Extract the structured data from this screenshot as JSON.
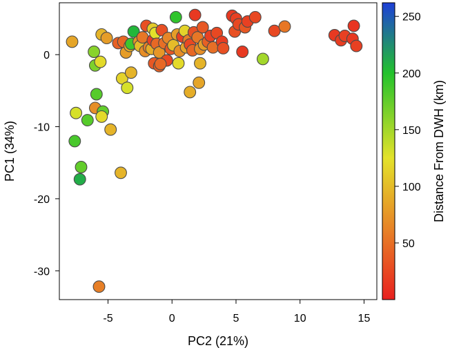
{
  "chart_data": {
    "type": "scatter",
    "xlabel": "PC2 (21%)",
    "ylabel": "PC1 (34%)",
    "xlim": [
      -8.8,
      16
    ],
    "ylim": [
      -34,
      7.2
    ],
    "xticks": [
      -5,
      0,
      5,
      10,
      15
    ],
    "yticks": [
      0,
      -10,
      -20,
      -30
    ],
    "xtick_labels": [
      "-5",
      "0",
      "5",
      "10",
      "15"
    ],
    "ytick_labels": [
      "0",
      "-10",
      "-20",
      "-30"
    ],
    "grid": false,
    "colorbar": {
      "label": "Distance From DWH (km)",
      "range": [
        0,
        262
      ],
      "ticks": [
        50,
        100,
        150,
        200,
        250
      ],
      "tick_labels": [
        "50",
        "100",
        "150",
        "200",
        "250"
      ],
      "stops": [
        {
          "v": 0,
          "color": "#e8211f"
        },
        {
          "v": 60,
          "color": "#e77f27"
        },
        {
          "v": 125,
          "color": "#e3e22a"
        },
        {
          "v": 200,
          "color": "#23c22c"
        },
        {
          "v": 262,
          "color": "#1e3fd8"
        }
      ]
    },
    "points": [
      {
        "x": -7.8,
        "y": 1.8,
        "d": 85
      },
      {
        "x": -5.5,
        "y": 2.8,
        "d": 95
      },
      {
        "x": -5.1,
        "y": 2.3,
        "d": 80
      },
      {
        "x": -6.1,
        "y": 0.4,
        "d": 160
      },
      {
        "x": -6.0,
        "y": -1.5,
        "d": 165
      },
      {
        "x": -5.6,
        "y": -1.0,
        "d": 120
      },
      {
        "x": -4.2,
        "y": 1.6,
        "d": 40
      },
      {
        "x": -3.8,
        "y": 1.8,
        "d": 45
      },
      {
        "x": -3.6,
        "y": 0.3,
        "d": 80
      },
      {
        "x": -3.3,
        "y": 1.2,
        "d": 90
      },
      {
        "x": -3.2,
        "y": 1.5,
        "d": 190
      },
      {
        "x": -3.0,
        "y": 3.2,
        "d": 205
      },
      {
        "x": -2.6,
        "y": 1.8,
        "d": 75
      },
      {
        "x": -2.5,
        "y": 1.2,
        "d": 100
      },
      {
        "x": -2.3,
        "y": 2.4,
        "d": 55
      },
      {
        "x": -2.1,
        "y": 0.5,
        "d": 70
      },
      {
        "x": -2.0,
        "y": 4.0,
        "d": 30
      },
      {
        "x": -1.8,
        "y": 1.0,
        "d": 60
      },
      {
        "x": -1.6,
        "y": 0.8,
        "d": 90
      },
      {
        "x": -1.5,
        "y": 3.6,
        "d": 110
      },
      {
        "x": -1.5,
        "y": 2.0,
        "d": 20
      },
      {
        "x": -1.4,
        "y": -1.2,
        "d": 35
      },
      {
        "x": -1.3,
        "y": 3.0,
        "d": 125
      },
      {
        "x": -1.2,
        "y": 1.5,
        "d": 45
      },
      {
        "x": -1.0,
        "y": 0.3,
        "d": 75
      },
      {
        "x": -1.0,
        "y": -1.6,
        "d": 40
      },
      {
        "x": -0.8,
        "y": 3.4,
        "d": 30
      },
      {
        "x": -0.6,
        "y": 1.6,
        "d": 50
      },
      {
        "x": -0.4,
        "y": -0.8,
        "d": 25
      },
      {
        "x": -0.3,
        "y": 2.3,
        "d": 65
      },
      {
        "x": -0.1,
        "y": 0.8,
        "d": 35
      },
      {
        "x": 0.1,
        "y": 1.3,
        "d": 100
      },
      {
        "x": 0.3,
        "y": 5.2,
        "d": 195
      },
      {
        "x": 0.4,
        "y": 2.8,
        "d": 80
      },
      {
        "x": 0.6,
        "y": 0.5,
        "d": 70
      },
      {
        "x": 0.8,
        "y": 2.5,
        "d": 20
      },
      {
        "x": 1.0,
        "y": 3.3,
        "d": 115
      },
      {
        "x": 1.1,
        "y": 1.0,
        "d": 85
      },
      {
        "x": 1.3,
        "y": 2.0,
        "d": 60
      },
      {
        "x": 1.4,
        "y": 1.4,
        "d": 25
      },
      {
        "x": 1.6,
        "y": 0.6,
        "d": 45
      },
      {
        "x": 1.7,
        "y": 3.1,
        "d": 30
      },
      {
        "x": 1.8,
        "y": 5.5,
        "d": 15
      },
      {
        "x": 2.0,
        "y": 2.4,
        "d": 55
      },
      {
        "x": 2.2,
        "y": 0.8,
        "d": 70
      },
      {
        "x": 2.4,
        "y": 3.8,
        "d": 35
      },
      {
        "x": 2.5,
        "y": 1.4,
        "d": 80
      },
      {
        "x": 2.8,
        "y": 1.8,
        "d": 40
      },
      {
        "x": 3.0,
        "y": 2.6,
        "d": 20
      },
      {
        "x": 3.2,
        "y": 1.0,
        "d": 50
      },
      {
        "x": 3.5,
        "y": 3.0,
        "d": 25
      },
      {
        "x": 3.9,
        "y": 1.8,
        "d": 18
      },
      {
        "x": 4.0,
        "y": 0.9,
        "d": 30
      },
      {
        "x": 4.7,
        "y": 5.4,
        "d": 15
      },
      {
        "x": 4.9,
        "y": 3.2,
        "d": 30
      },
      {
        "x": 5.0,
        "y": 5.0,
        "d": 20
      },
      {
        "x": 5.2,
        "y": 4.2,
        "d": 25
      },
      {
        "x": 5.5,
        "y": 0.4,
        "d": 15
      },
      {
        "x": 5.7,
        "y": 3.8,
        "d": 35
      },
      {
        "x": 5.9,
        "y": 4.6,
        "d": 20
      },
      {
        "x": 6.5,
        "y": 5.2,
        "d": 25
      },
      {
        "x": 7.1,
        "y": -0.6,
        "d": 150
      },
      {
        "x": 8.0,
        "y": 3.3,
        "d": 25
      },
      {
        "x": 8.8,
        "y": 3.9,
        "d": 55
      },
      {
        "x": 12.7,
        "y": 2.7,
        "d": 15
      },
      {
        "x": 13.2,
        "y": 2.0,
        "d": 18
      },
      {
        "x": 13.5,
        "y": 2.6,
        "d": 20
      },
      {
        "x": 14.1,
        "y": 2.2,
        "d": 15
      },
      {
        "x": 14.2,
        "y": 4.0,
        "d": 12
      },
      {
        "x": 14.4,
        "y": 1.2,
        "d": 20
      },
      {
        "x": -0.9,
        "y": -1.3,
        "d": 45
      },
      {
        "x": 0.5,
        "y": -1.2,
        "d": 120
      },
      {
        "x": 2.2,
        "y": -1.2,
        "d": 95
      },
      {
        "x": 1.4,
        "y": -5.2,
        "d": 90
      },
      {
        "x": 2.1,
        "y": -3.9,
        "d": 85
      },
      {
        "x": -3.9,
        "y": -3.3,
        "d": 115
      },
      {
        "x": -3.5,
        "y": -4.6,
        "d": 130
      },
      {
        "x": -3.2,
        "y": -2.5,
        "d": 95
      },
      {
        "x": -5.9,
        "y": -5.5,
        "d": 180
      },
      {
        "x": -6.0,
        "y": -7.4,
        "d": 70
      },
      {
        "x": -5.4,
        "y": -7.9,
        "d": 175
      },
      {
        "x": -7.5,
        "y": -8.1,
        "d": 130
      },
      {
        "x": -5.5,
        "y": -8.6,
        "d": 120
      },
      {
        "x": -6.6,
        "y": -9.1,
        "d": 180
      },
      {
        "x": -4.8,
        "y": -10.4,
        "d": 95
      },
      {
        "x": -7.6,
        "y": -12.0,
        "d": 185
      },
      {
        "x": -7.1,
        "y": -15.6,
        "d": 175
      },
      {
        "x": -7.2,
        "y": -17.3,
        "d": 210
      },
      {
        "x": -4.0,
        "y": -16.4,
        "d": 95
      },
      {
        "x": -5.7,
        "y": -32.2,
        "d": 60
      }
    ]
  }
}
